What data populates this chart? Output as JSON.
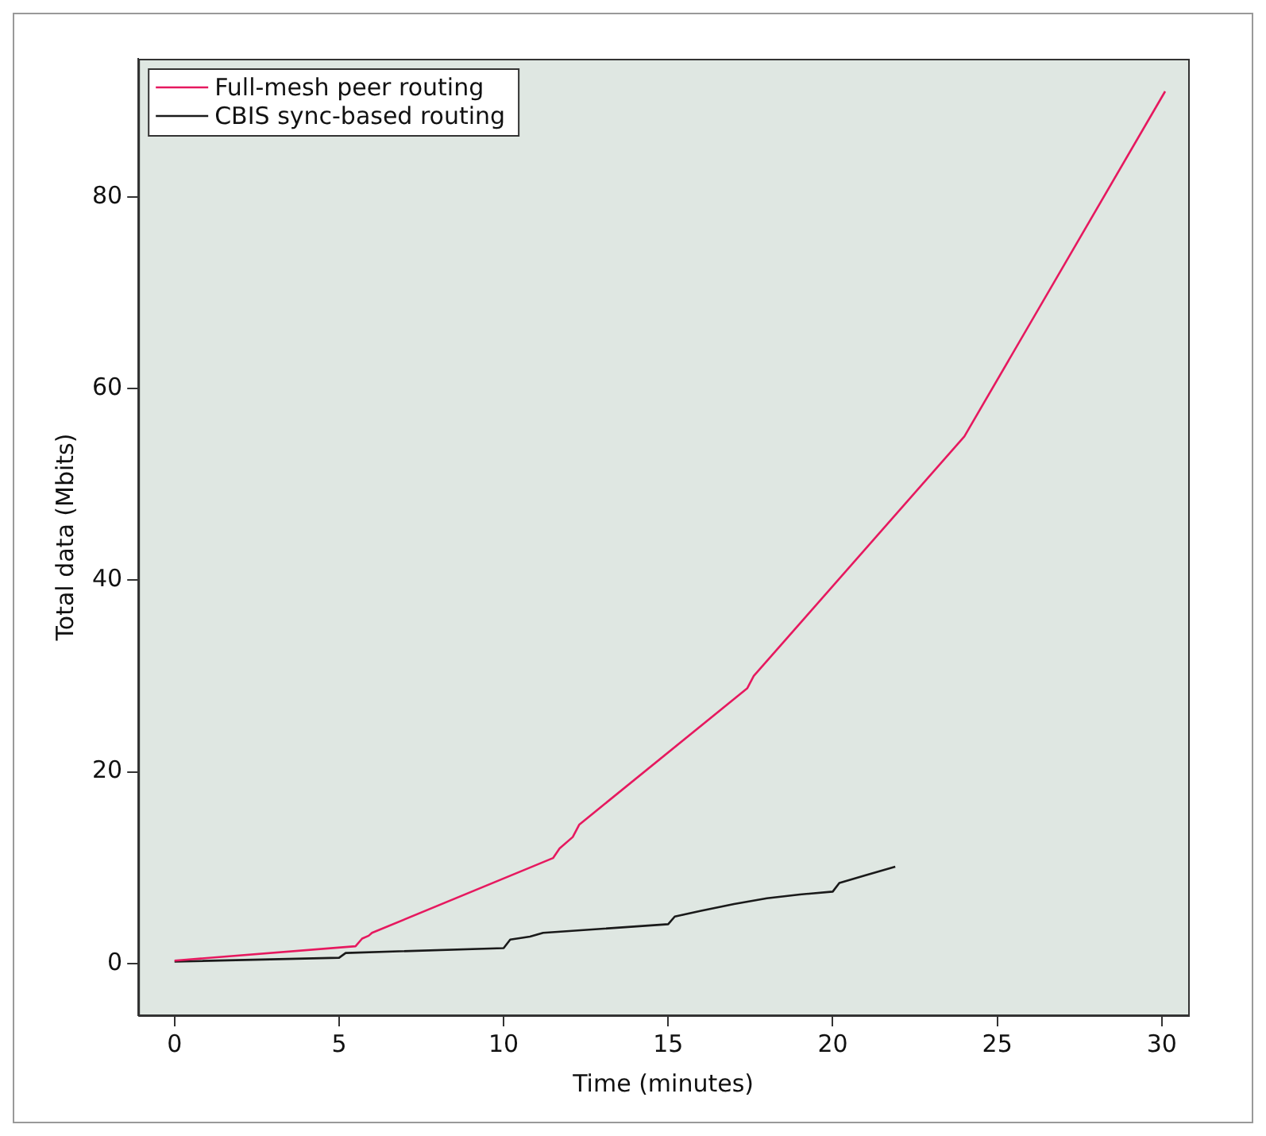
{
  "chart_data": {
    "type": "line",
    "xlabel": "Time (minutes)",
    "ylabel": "Total data (Mbits)",
    "xlim": [
      -1.1,
      30.8
    ],
    "ylim": [
      -5.4,
      94.4
    ],
    "xticks": [
      0,
      5,
      10,
      15,
      20,
      25,
      30
    ],
    "yticks": [
      0,
      20,
      40,
      60,
      80
    ],
    "grid": false,
    "legend": "top left",
    "marker": "none",
    "line_style": "solid",
    "series": [
      {
        "name": "Full-mesh peer routing",
        "color": "#e6195f",
        "x": [
          0,
          5.5,
          5.7,
          5.9,
          6.0,
          11.5,
          11.7,
          12.1,
          12.3,
          17.4,
          17.6,
          24,
          30.1
        ],
        "values": [
          0.3,
          1.8,
          2.6,
          2.9,
          3.2,
          11,
          12,
          13.2,
          14.5,
          28.7,
          30,
          55,
          91
        ]
      },
      {
        "name": "CBIS sync-based routing",
        "color": "#1a1a1a",
        "x": [
          0,
          5,
          5.2,
          10,
          10.2,
          10.8,
          11.2,
          15,
          15.2,
          16,
          17,
          18,
          19,
          20,
          20.2,
          21,
          21.9
        ],
        "values": [
          0.2,
          0.6,
          1.1,
          1.6,
          2.5,
          2.8,
          3.2,
          4.1,
          4.9,
          5.5,
          6.2,
          6.8,
          7.2,
          7.5,
          8.4,
          9.2,
          10.1
        ]
      }
    ]
  }
}
